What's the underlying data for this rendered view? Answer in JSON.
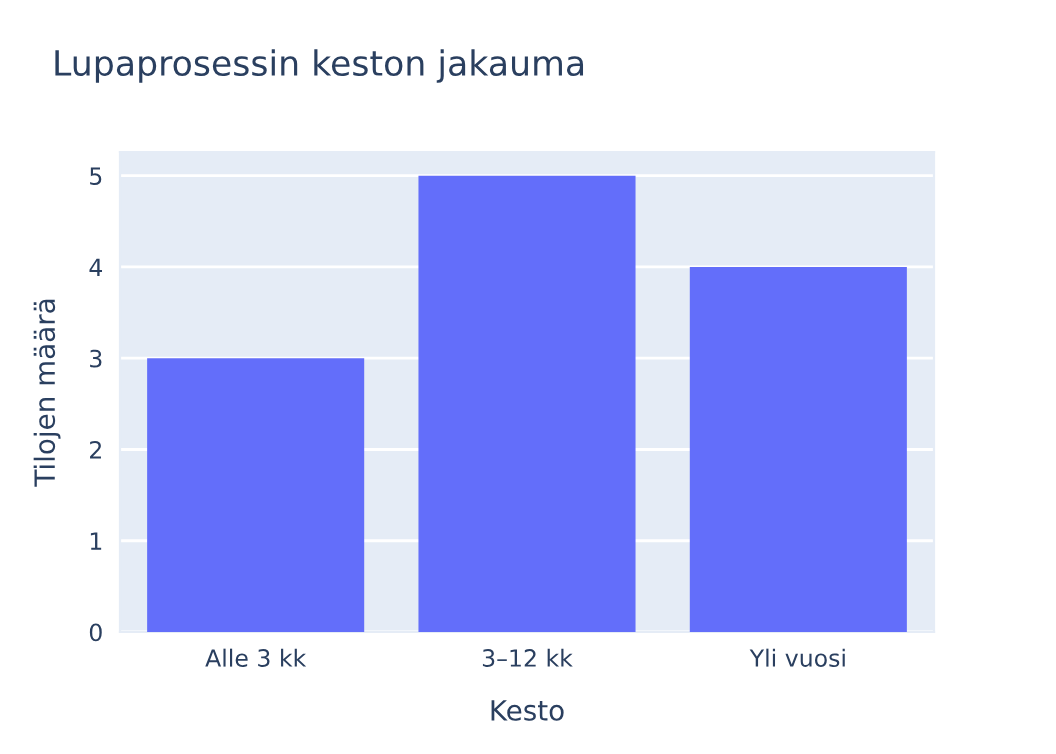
{
  "chart_data": {
    "type": "bar",
    "title": "Lupaprosessin keston jakauma",
    "xlabel": "Kesto",
    "ylabel": "Tilojen määrä",
    "categories": [
      "Alle 3 kk",
      "3–12 kk",
      "Yli vuosi"
    ],
    "values": [
      3,
      5,
      4
    ],
    "color": "#636efa",
    "ylim": [
      0,
      5.26
    ],
    "yticks": [
      0,
      1,
      2,
      3,
      4,
      5
    ],
    "grid": "y"
  }
}
